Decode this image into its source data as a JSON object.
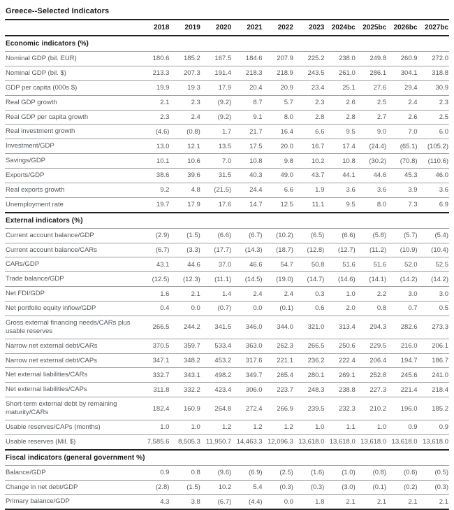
{
  "title": "Greece--Selected Indicators",
  "table": {
    "columns": [
      "2018",
      "2019",
      "2020",
      "2021",
      "2022",
      "2023",
      "2024bc",
      "2025bc",
      "2026bc",
      "2027bc"
    ],
    "sections": [
      {
        "label": "Economic indicators (%)",
        "rows": [
          {
            "label": "Nominal GDP (bil. EUR)",
            "values": [
              "180.6",
              "185.2",
              "167.5",
              "184.6",
              "207.9",
              "225.2",
              "238.0",
              "249.8",
              "260.9",
              "272.0"
            ]
          },
          {
            "label": "Nominal GDP (bil. $)",
            "values": [
              "213.3",
              "207.3",
              "191.4",
              "218.3",
              "218.9",
              "243.5",
              "261.0",
              "286.1",
              "304.1",
              "318.8"
            ]
          },
          {
            "label": "GDP per capita (000s $)",
            "values": [
              "19.9",
              "19.3",
              "17.9",
              "20.4",
              "20.9",
              "23.4",
              "25.1",
              "27.6",
              "29.4",
              "30.9"
            ]
          },
          {
            "label": "Real GDP growth",
            "values": [
              "2.1",
              "2.3",
              "(9.2)",
              "8.7",
              "5.7",
              "2.3",
              "2.6",
              "2.5",
              "2.4",
              "2.3"
            ]
          },
          {
            "label": "Real GDP per capita growth",
            "values": [
              "2.3",
              "2.4",
              "(9.2)",
              "9.1",
              "8.0",
              "2.8",
              "2.8",
              "2.7",
              "2.6",
              "2.5"
            ]
          },
          {
            "label": "Real investment growth",
            "values": [
              "(4.6)",
              "(0.8)",
              "1.7",
              "21.7",
              "16.4",
              "6.6",
              "9.5",
              "9.0",
              "7.0",
              "6.0"
            ]
          },
          {
            "label": "Investment/GDP",
            "values": [
              "13.0",
              "12.1",
              "13.5",
              "17.5",
              "20.0",
              "16.7",
              "17.4",
              "(24.4)",
              "(65.1)",
              "(105.2)"
            ]
          },
          {
            "label": "Savings/GDP",
            "values": [
              "10.1",
              "10.6",
              "7.0",
              "10.8",
              "9.8",
              "10.2",
              "10.8",
              "(30.2)",
              "(70.8)",
              "(110.6)"
            ]
          },
          {
            "label": "Exports/GDP",
            "values": [
              "38.6",
              "39.6",
              "31.5",
              "40.3",
              "49.0",
              "43.7",
              "44.1",
              "44.6",
              "45.3",
              "46.0"
            ]
          },
          {
            "label": "Real exports growth",
            "values": [
              "9.2",
              "4.8",
              "(21.5)",
              "24.4",
              "6.6",
              "1.9",
              "3.6",
              "3.6",
              "3.9",
              "3.6"
            ]
          },
          {
            "label": "Unemployment rate",
            "values": [
              "19.7",
              "17.9",
              "17.6",
              "14.7",
              "12.5",
              "11.1",
              "9.5",
              "8.0",
              "7.3",
              "6.9"
            ]
          }
        ]
      },
      {
        "label": "External indicators (%)",
        "rows": [
          {
            "label": "Current account balance/GDP",
            "values": [
              "(2.9)",
              "(1.5)",
              "(6.6)",
              "(6.7)",
              "(10.2)",
              "(6.5)",
              "(6.6)",
              "(5.8)",
              "(5.7)",
              "(5.4)"
            ]
          },
          {
            "label": "Current account balance/CARs",
            "values": [
              "(6.7)",
              "(3.3)",
              "(17.7)",
              "(14.3)",
              "(18.7)",
              "(12.8)",
              "(12.7)",
              "(11.2)",
              "(10.9)",
              "(10.4)"
            ]
          },
          {
            "label": "CARs/GDP",
            "values": [
              "43.1",
              "44.6",
              "37.0",
              "46.6",
              "54.7",
              "50.8",
              "51.6",
              "51.6",
              "52.0",
              "52.5"
            ]
          },
          {
            "label": "Trade balance/GDP",
            "values": [
              "(12.5)",
              "(12.3)",
              "(11.1)",
              "(14.5)",
              "(19.0)",
              "(14.7)",
              "(14.6)",
              "(14.1)",
              "(14.2)",
              "(14.2)"
            ]
          },
          {
            "label": "Net FDI/GDP",
            "values": [
              "1.6",
              "2.1",
              "1.4",
              "2.4",
              "2.4",
              "0.3",
              "1.0",
              "2.2",
              "3.0",
              "3.0"
            ]
          },
          {
            "label": "Net portfolio equity inflow/GDP",
            "values": [
              "0.4",
              "0.0",
              "(0.7)",
              "0.0",
              "(0.1)",
              "0.6",
              "2.0",
              "0.8",
              "0.7",
              "0.5"
            ]
          },
          {
            "label": "Gross external financing needs/CARs plus usable reserves",
            "values": [
              "266.5",
              "244.2",
              "341.5",
              "346.0",
              "344.0",
              "321.0",
              "313.4",
              "294.3",
              "282.6",
              "273.3"
            ]
          },
          {
            "label": "Narrow net external debt/CARs",
            "values": [
              "370.5",
              "359.7",
              "533.4",
              "363.0",
              "262.3",
              "266.5",
              "250.6",
              "229.5",
              "216.0",
              "206.1"
            ]
          },
          {
            "label": "Narrow net external debt/CAPs",
            "values": [
              "347.1",
              "348.2",
              "453.2",
              "317.6",
              "221.1",
              "236.2",
              "222.4",
              "206.4",
              "194.7",
              "186.7"
            ]
          },
          {
            "label": "Net external liabilities/CARs",
            "values": [
              "332.7",
              "343.1",
              "498.2",
              "349.7",
              "265.4",
              "280.1",
              "269.1",
              "252.8",
              "245.6",
              "241.0"
            ]
          },
          {
            "label": "Net external liabilities/CAPs",
            "values": [
              "311.8",
              "332.2",
              "423.4",
              "306.0",
              "223.7",
              "248.3",
              "238.8",
              "227.3",
              "221.4",
              "218.4"
            ]
          },
          {
            "label": "Short-term external debt by remaining maturity/CARs",
            "values": [
              "182.4",
              "160.9",
              "264.8",
              "272.4",
              "266.9",
              "239.5",
              "232.3",
              "210.2",
              "196.0",
              "185.2"
            ]
          },
          {
            "label": "Usable reserves/CAPs (months)",
            "values": [
              "1.0",
              "1.0",
              "1.2",
              "1.2",
              "1.2",
              "1.0",
              "1.1",
              "1.0",
              "0.9",
              "0.9"
            ]
          },
          {
            "label": "Usable reserves (Mil. $)",
            "values": [
              "7,585.6",
              "8,505.3",
              "11,950.7",
              "14,463.3",
              "12,096.3",
              "13,618.0",
              "13,618.0",
              "13,618.0",
              "13,618.0",
              "13,618.0"
            ]
          }
        ]
      },
      {
        "label": "Fiscal indicators (general government %)",
        "rows": [
          {
            "label": "Balance/GDP",
            "values": [
              "0.9",
              "0.8",
              "(9.6)",
              "(6.9)",
              "(2.5)",
              "(1.6)",
              "(1.0)",
              "(0.8)",
              "(0.6)",
              "(0.5)"
            ]
          },
          {
            "label": "Change in net debt/GDP",
            "values": [
              "(2.8)",
              "(1.5)",
              "10.2",
              "5.4",
              "(0.3)",
              "(0.3)",
              "(3.0)",
              "(0.1)",
              "(0.2)",
              "(0.3)"
            ]
          },
          {
            "label": "Primary balance/GDP",
            "values": [
              "4.3",
              "3.8",
              "(6.7)",
              "(4.4)",
              "0.0",
              "1.8",
              "2.1",
              "2.1",
              "2.1",
              "2.1"
            ]
          }
        ]
      }
    ]
  }
}
